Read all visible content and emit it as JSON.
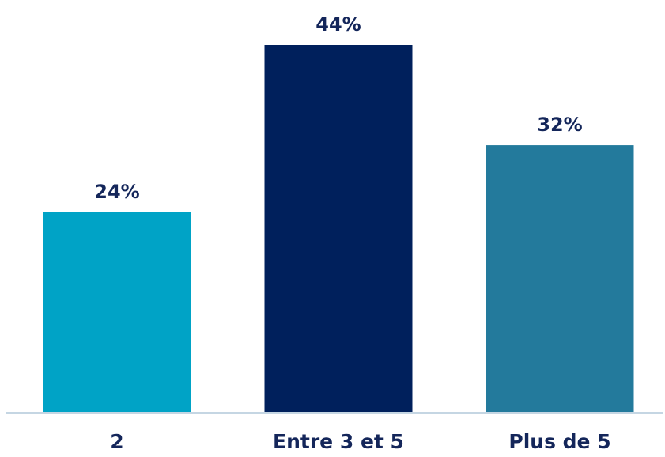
{
  "chart_data": {
    "type": "bar",
    "title": "",
    "xlabel": "",
    "ylabel": "",
    "ylim": [
      0,
      44
    ],
    "grid": false,
    "legend": "none",
    "categories": [
      "2",
      "Entre 3 et 5",
      "Plus de 5"
    ],
    "values": [
      24,
      44,
      32
    ],
    "value_labels": [
      "24%",
      "44%",
      "32%"
    ],
    "colors": [
      "#00a3c6",
      "#00205c",
      "#237a9c"
    ],
    "label_color": "#14265a",
    "axis_color": "#c5d6e3"
  }
}
